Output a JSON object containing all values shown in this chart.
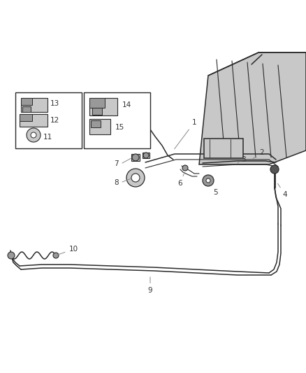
{
  "bg_color": "#ffffff",
  "line_color": "#2a2a2a",
  "light_gray": "#c8c8c8",
  "mid_gray": "#999999",
  "dark_gray": "#555555",
  "label_color": "#333333",
  "figsize": [
    4.38,
    5.33
  ],
  "dpi": 100
}
